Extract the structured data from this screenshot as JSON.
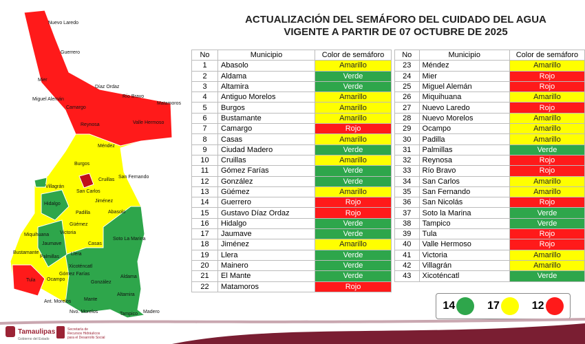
{
  "title": [
    "ACTUALIZACIÓN DEL SEMÁFORO DEL CUIDADO DEL AGUA",
    "VIGENTE A PARTIR DE 07 OCTUBRE DE 2025"
  ],
  "table_header": [
    "No",
    "Municipio",
    "Color de semáforo"
  ],
  "status_colors": {
    "Verde": "#2ea64b",
    "Amarillo": "#ffff00",
    "Rojo": "#ff1a1a"
  },
  "tables": [
    {
      "rows": [
        [
          1,
          "Abasolo",
          "Amarillo"
        ],
        [
          2,
          "Aldama",
          "Verde"
        ],
        [
          3,
          "Altamira",
          "Verde"
        ],
        [
          4,
          "Antiguo Morelos",
          "Amarillo"
        ],
        [
          5,
          "Burgos",
          "Amarillo"
        ],
        [
          6,
          "Bustamante",
          "Amarillo"
        ],
        [
          7,
          "Camargo",
          "Rojo"
        ],
        [
          8,
          "Casas",
          "Amarillo"
        ],
        [
          9,
          "Ciudad Madero",
          "Verde"
        ],
        [
          10,
          "Cruillas",
          "Amarillo"
        ],
        [
          11,
          "Gómez Farías",
          "Verde"
        ],
        [
          12,
          "González",
          "Verde"
        ],
        [
          13,
          "Güémez",
          "Amarillo"
        ],
        [
          14,
          "Guerrero",
          "Rojo"
        ],
        [
          15,
          "Gustavo Díaz Ordaz",
          "Rojo"
        ],
        [
          16,
          "Hidalgo",
          "Verde"
        ],
        [
          17,
          "Jaumave",
          "Verde"
        ],
        [
          18,
          "Jiménez",
          "Amarillo"
        ],
        [
          19,
          "Llera",
          "Verde"
        ],
        [
          20,
          "Mainero",
          "Verde"
        ],
        [
          21,
          "El Mante",
          "Verde"
        ],
        [
          22,
          "Matamoros",
          "Rojo"
        ]
      ]
    },
    {
      "rows": [
        [
          23,
          "Méndez",
          "Amarillo"
        ],
        [
          24,
          "Mier",
          "Rojo"
        ],
        [
          25,
          "Miguel Alemán",
          "Rojo"
        ],
        [
          26,
          "Miquihuana",
          "Amarillo"
        ],
        [
          27,
          "Nuevo Laredo",
          "Rojo"
        ],
        [
          28,
          "Nuevo Morelos",
          "Amarillo"
        ],
        [
          29,
          "Ocampo",
          "Amarillo"
        ],
        [
          30,
          "Padilla",
          "Amarillo"
        ],
        [
          31,
          "Palmillas",
          "Verde"
        ],
        [
          32,
          "Reynosa",
          "Rojo"
        ],
        [
          33,
          "Río Bravo",
          "Rojo"
        ],
        [
          34,
          "San Carlos",
          "Amarillo"
        ],
        [
          35,
          "San Fernando",
          "Amarillo"
        ],
        [
          36,
          "San Nicolás",
          "Rojo"
        ],
        [
          37,
          "Soto la Marina",
          "Verde"
        ],
        [
          38,
          "Tampico",
          "Verde"
        ],
        [
          39,
          "Tula",
          "Rojo"
        ],
        [
          40,
          "Valle Hermoso",
          "Rojo"
        ],
        [
          41,
          "Victoria",
          "Amarillo"
        ],
        [
          42,
          "Villagrán",
          "Amarillo"
        ],
        [
          43,
          "Xicoténcatl",
          "Verde"
        ]
      ]
    }
  ],
  "legend": [
    {
      "count": 14,
      "color": "#2ea64b"
    },
    {
      "count": 17,
      "color": "#ffff00"
    },
    {
      "count": 12,
      "color": "#ff1a1a"
    }
  ],
  "map_labels": [
    "Nuevo Laredo",
    "Guerrero",
    "Mier",
    "Miguel Alemán",
    "Camargo",
    "Díaz Ordaz",
    "Río Bravo",
    "Matamoros",
    "Valle Hermoso",
    "Reynosa",
    "Méndez",
    "Burgos",
    "Cruillas",
    "San Fernando",
    "Villagrán",
    "San Carlos",
    "Jiménez",
    "Hidalgo",
    "Abasolo",
    "Padilla",
    "Güémez",
    "Victoria",
    "Soto La Marina",
    "Miquihuana",
    "Jaumave",
    "Casas",
    "Llera",
    "Bustamante",
    "Palmillas",
    "Tula",
    "Ocampo",
    "Xicoténcatl",
    "Gómez Farías",
    "Aldama",
    "González",
    "Mante",
    "Altamira",
    "Ant. Morelos",
    "Nvo. Morelos",
    "Tampico",
    "Madero"
  ],
  "footer": {
    "state": "Tamaulipas",
    "state_sub": "Gobierno del Estado",
    "agency": [
      "Secretaría de",
      "Recursos Hidráulicos",
      "para el Desarrollo Social"
    ]
  }
}
